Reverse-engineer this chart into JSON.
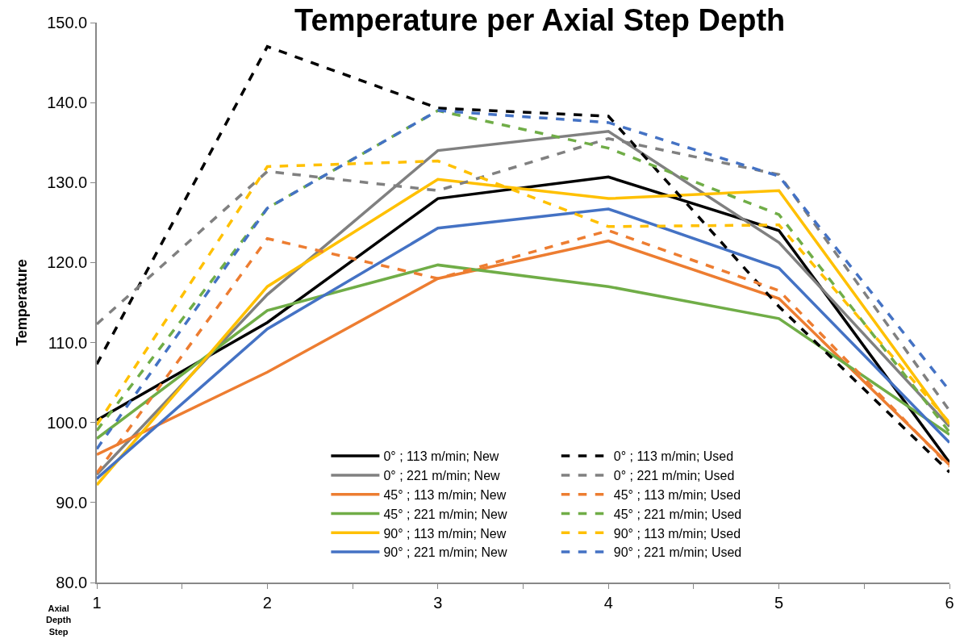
{
  "chart_data": {
    "type": "line",
    "title": "Temperature per Axial Step Depth",
    "xlabel": "Axial Depth Step",
    "ylabel": "Temperature",
    "x": [
      1,
      2,
      3,
      4,
      5,
      6
    ],
    "xlim": [
      1,
      6
    ],
    "xticks": [
      1,
      {
        "value": 1.5,
        "label": null
      },
      2,
      {
        "value": 2.5,
        "label": null
      },
      3,
      {
        "value": 3.5,
        "label": null
      },
      4,
      {
        "value": 4.5,
        "label": null
      },
      5,
      {
        "value": 5.5,
        "label": null
      },
      6
    ],
    "ylim": [
      80,
      150
    ],
    "yticks": [
      {
        "value": 80,
        "label": "80.0"
      },
      {
        "value": 90,
        "label": "90.0"
      },
      {
        "value": 100,
        "label": "100.0"
      },
      {
        "value": 110,
        "label": "110.0"
      },
      {
        "value": 120,
        "label": "120.0"
      },
      {
        "value": 130,
        "label": "130.0"
      },
      {
        "value": 140,
        "label": "140.0"
      },
      {
        "value": 150,
        "label": "150.0"
      }
    ],
    "legend": "bottom",
    "marker": "none",
    "series": [
      {
        "name": "0° ; 113 m/min; New",
        "color": "#000000",
        "line_style": "solid",
        "values": [
          100.3,
          112.5,
          128,
          130.7,
          124,
          95
        ]
      },
      {
        "name": "0° ; 221 m/min; New",
        "color": "#808080",
        "line_style": "solid",
        "values": [
          93.5,
          116,
          134,
          136.4,
          122.5,
          99.5
        ]
      },
      {
        "name": "45° ; 113 m/min; New",
        "color": "#ed7d31",
        "line_style": "solid",
        "values": [
          96,
          106.3,
          118,
          122.7,
          115.5,
          94.7
        ]
      },
      {
        "name": "45° ; 221 m/min; New",
        "color": "#70ad47",
        "line_style": "solid",
        "values": [
          98,
          114,
          119.7,
          117,
          113,
          98.5
        ]
      },
      {
        "name": "90° ; 113 m/min; New",
        "color": "#ffc000",
        "line_style": "solid",
        "values": [
          92.2,
          117,
          130.4,
          128,
          129,
          99.8
        ]
      },
      {
        "name": "90° ; 221 m/min; New",
        "color": "#4472c4",
        "line_style": "solid",
        "values": [
          93,
          111.7,
          124.3,
          126.7,
          119.3,
          97.5
        ]
      },
      {
        "name": "0° ; 113 m/min; Used",
        "color": "#000000",
        "line_style": "dashed",
        "values": [
          107.3,
          147,
          139.3,
          138.3,
          114.5,
          93.8
        ]
      },
      {
        "name": "0° ; 221 m/min; Used",
        "color": "#808080",
        "line_style": "dashed",
        "values": [
          112.3,
          131.4,
          129,
          135.5,
          131,
          101.5
        ]
      },
      {
        "name": "45° ; 113 m/min; Used",
        "color": "#ed7d31",
        "line_style": "dashed",
        "values": [
          93.7,
          123,
          118,
          124,
          116.5,
          94.5
        ]
      },
      {
        "name": "45° ; 221 m/min; Used",
        "color": "#70ad47",
        "line_style": "dashed",
        "values": [
          99,
          126.8,
          139,
          134.3,
          126,
          98.8
        ]
      },
      {
        "name": "90° ; 113 m/min; Used",
        "color": "#ffc000",
        "line_style": "dashed",
        "values": [
          99.7,
          132,
          132.7,
          124.5,
          124.7,
          100
        ]
      },
      {
        "name": "90° ; 221 m/min; Used",
        "color": "#4472c4",
        "line_style": "dashed",
        "values": [
          96.7,
          126.8,
          139,
          137.5,
          130.8,
          104
        ]
      }
    ]
  }
}
